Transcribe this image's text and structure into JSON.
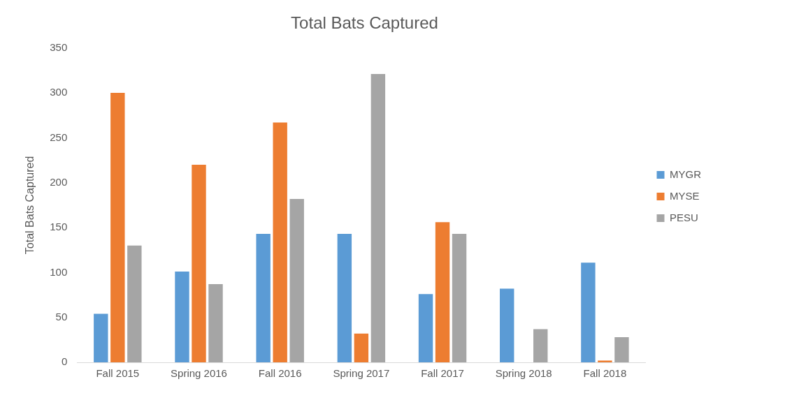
{
  "chart_data": {
    "type": "bar",
    "title": "Total Bats Captured",
    "ylabel": "Total Bats Captured",
    "categories": [
      "Fall 2015",
      "Spring 2016",
      "Fall 2016",
      "Spring 2017",
      "Fall 2017",
      "Spring 2018",
      "Fall 2018"
    ],
    "series": [
      {
        "name": "MYGR",
        "color": "#5b9bd5",
        "values": [
          54,
          101,
          143,
          143,
          76,
          82,
          111
        ]
      },
      {
        "name": "MYSE",
        "color": "#ed7d31",
        "values": [
          300,
          220,
          267,
          32,
          156,
          0,
          2
        ]
      },
      {
        "name": "PESU",
        "color": "#a5a5a5",
        "values": [
          130,
          87,
          182,
          321,
          143,
          37,
          28
        ]
      }
    ],
    "ylim": [
      0,
      350
    ],
    "yticks": [
      0,
      50,
      100,
      150,
      200,
      250,
      300,
      350
    ],
    "grid": false,
    "legend": "right"
  }
}
